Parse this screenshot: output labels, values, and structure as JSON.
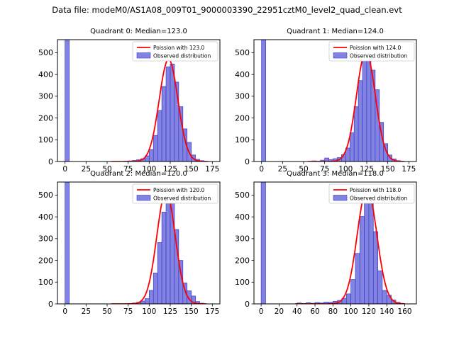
{
  "figure": {
    "title": "Data file: modeM0/AS1A08_009T01_9000003390_22951cztM0_level2_quad_clean.evt",
    "background": "#ffffff"
  },
  "colors": {
    "bar_fill": "#8282e0",
    "bar_edge": "#3b3bd0",
    "curve": "#ff0000",
    "legend_edge": "#cccccc",
    "axes_edge": "#000000",
    "text": "#000000"
  },
  "chart_data": [
    {
      "type": "bar",
      "title": "Quadrant 0: Median=123.0",
      "median": 123.0,
      "legend": [
        {
          "label": "Poission with 123.0",
          "type": "line",
          "color": "#ff0000"
        },
        {
          "label": "Observed distribution",
          "type": "patch",
          "color": "#8282e0"
        }
      ],
      "xlim": [
        -9,
        184
      ],
      "ylim": [
        0,
        560
      ],
      "xticks": [
        0,
        25,
        50,
        75,
        100,
        125,
        150,
        175
      ],
      "yticks": [
        0,
        100,
        200,
        300,
        400,
        500
      ],
      "bin_width": 5,
      "bars": [
        [
          0,
          3000
        ],
        [
          70,
          2
        ],
        [
          75,
          3
        ],
        [
          80,
          5
        ],
        [
          85,
          8
        ],
        [
          90,
          13
        ],
        [
          95,
          26
        ],
        [
          100,
          55
        ],
        [
          105,
          120
        ],
        [
          110,
          235
        ],
        [
          115,
          345
        ],
        [
          120,
          435
        ],
        [
          125,
          448
        ],
        [
          130,
          365
        ],
        [
          135,
          252
        ],
        [
          140,
          150
        ],
        [
          145,
          88
        ],
        [
          150,
          30
        ],
        [
          155,
          10
        ],
        [
          160,
          4
        ],
        [
          165,
          1
        ]
      ],
      "fit": {
        "mu": 123.0,
        "peak": 470,
        "x_start": 55,
        "x_end": 170
      }
    },
    {
      "type": "bar",
      "title": "Quadrant 1: Median=124.0",
      "median": 124.0,
      "legend": [
        {
          "label": "Poission with 124.0",
          "type": "line",
          "color": "#ff0000"
        },
        {
          "label": "Observed distribution",
          "type": "patch",
          "color": "#8282e0"
        }
      ],
      "xlim": [
        -9,
        184
      ],
      "ylim": [
        0,
        560
      ],
      "xticks": [
        0,
        25,
        50,
        75,
        100,
        125,
        150,
        175
      ],
      "yticks": [
        0,
        100,
        200,
        300,
        400,
        500
      ],
      "bin_width": 5,
      "bars": [
        [
          0,
          3000
        ],
        [
          60,
          3
        ],
        [
          65,
          2
        ],
        [
          70,
          6
        ],
        [
          75,
          16
        ],
        [
          80,
          9
        ],
        [
          85,
          13
        ],
        [
          90,
          18
        ],
        [
          95,
          32
        ],
        [
          100,
          62
        ],
        [
          105,
          132
        ],
        [
          110,
          252
        ],
        [
          115,
          372
        ],
        [
          120,
          470
        ],
        [
          125,
          502
        ],
        [
          130,
          420
        ],
        [
          135,
          330
        ],
        [
          140,
          180
        ],
        [
          145,
          82
        ],
        [
          150,
          30
        ],
        [
          155,
          12
        ],
        [
          160,
          4
        ]
      ],
      "fit": {
        "mu": 124.0,
        "peak": 505,
        "x_start": 55,
        "x_end": 170
      }
    },
    {
      "type": "bar",
      "title": "Quadrant 2: Median=120.0",
      "median": 120.0,
      "legend": [
        {
          "label": "Poission with 120.0",
          "type": "line",
          "color": "#ff0000"
        },
        {
          "label": "Observed distribution",
          "type": "patch",
          "color": "#8282e0"
        }
      ],
      "xlim": [
        -9,
        184
      ],
      "ylim": [
        0,
        560
      ],
      "xticks": [
        0,
        25,
        50,
        75,
        100,
        125,
        150,
        175
      ],
      "yticks": [
        0,
        100,
        200,
        300,
        400,
        500
      ],
      "bin_width": 5,
      "bars": [
        [
          0,
          3000
        ],
        [
          75,
          2
        ],
        [
          80,
          4
        ],
        [
          85,
          7
        ],
        [
          90,
          13
        ],
        [
          95,
          24
        ],
        [
          100,
          62
        ],
        [
          105,
          142
        ],
        [
          110,
          282
        ],
        [
          115,
          422
        ],
        [
          120,
          512
        ],
        [
          125,
          465
        ],
        [
          130,
          342
        ],
        [
          135,
          200
        ],
        [
          140,
          96
        ],
        [
          145,
          60
        ],
        [
          150,
          36
        ],
        [
          155,
          11
        ],
        [
          160,
          3
        ]
      ],
      "fit": {
        "mu": 120.0,
        "peak": 515,
        "x_start": 55,
        "x_end": 168
      }
    },
    {
      "type": "bar",
      "title": "Quadrant 3: Median=118.0",
      "median": 118.0,
      "legend": [
        {
          "label": "Poission with 118.0",
          "type": "line",
          "color": "#ff0000"
        },
        {
          "label": "Observed distribution",
          "type": "patch",
          "color": "#8282e0"
        }
      ],
      "xlim": [
        -8,
        173
      ],
      "ylim": [
        0,
        560
      ],
      "xticks": [
        0,
        20,
        40,
        60,
        80,
        100,
        120,
        140,
        160
      ],
      "yticks": [
        0,
        100,
        200,
        300,
        400,
        500
      ],
      "bin_width": 5,
      "bars": [
        [
          0,
          3000
        ],
        [
          40,
          4
        ],
        [
          45,
          2
        ],
        [
          50,
          5
        ],
        [
          55,
          3
        ],
        [
          60,
          6
        ],
        [
          65,
          4
        ],
        [
          70,
          8
        ],
        [
          75,
          7
        ],
        [
          80,
          12
        ],
        [
          85,
          16
        ],
        [
          90,
          26
        ],
        [
          95,
          46
        ],
        [
          100,
          112
        ],
        [
          105,
          232
        ],
        [
          110,
          402
        ],
        [
          115,
          522
        ],
        [
          120,
          492
        ],
        [
          125,
          332
        ],
        [
          130,
          152
        ],
        [
          135,
          62
        ],
        [
          140,
          40
        ],
        [
          145,
          18
        ],
        [
          150,
          7
        ]
      ],
      "fit": {
        "mu": 118.0,
        "peak": 530,
        "x_start": 38,
        "x_end": 160
      }
    }
  ]
}
